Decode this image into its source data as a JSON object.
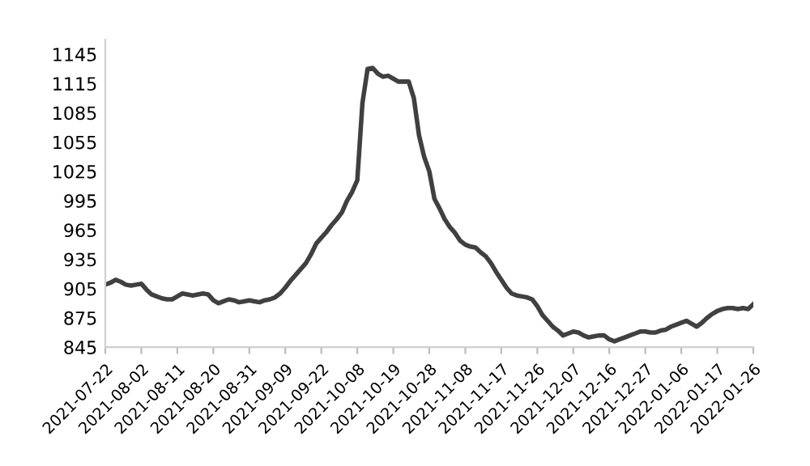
{
  "chart_data": {
    "type": "line",
    "categories": [
      "2021-07-22",
      null,
      null,
      null,
      null,
      null,
      null,
      "2021-08-02",
      null,
      null,
      null,
      null,
      null,
      null,
      "2021-08-11",
      null,
      null,
      null,
      null,
      null,
      null,
      "2021-08-20",
      null,
      null,
      null,
      null,
      null,
      null,
      "2021-08-31",
      null,
      null,
      null,
      null,
      null,
      null,
      "2021-09-09",
      null,
      null,
      null,
      null,
      null,
      null,
      "2021-09-22",
      null,
      null,
      null,
      null,
      null,
      null,
      "2021-10-08",
      null,
      null,
      null,
      null,
      null,
      null,
      "2021-10-19",
      null,
      null,
      null,
      null,
      null,
      null,
      "2021-10-28",
      null,
      null,
      null,
      null,
      null,
      null,
      "2021-11-08",
      null,
      null,
      null,
      null,
      null,
      null,
      "2021-11-17",
      null,
      null,
      null,
      null,
      null,
      null,
      "2021-11-26",
      null,
      null,
      null,
      null,
      null,
      null,
      "2021-12-07",
      null,
      null,
      null,
      null,
      null,
      null,
      "2021-12-16",
      null,
      null,
      null,
      null,
      null,
      null,
      "2021-12-27",
      null,
      null,
      null,
      null,
      null,
      null,
      "2022-01-06",
      null,
      null,
      null,
      null,
      null,
      null,
      "2022-01-17",
      null,
      null,
      null,
      null,
      null,
      null,
      "2022-01-26"
    ],
    "series": [
      {
        "color": "#404040",
        "values": [
          909,
          911,
          914,
          912,
          909,
          908,
          909,
          910,
          904,
          899,
          897,
          895,
          894,
          894,
          897,
          900,
          899,
          898,
          899,
          900,
          899,
          893,
          890,
          892,
          894,
          893,
          891,
          892,
          893,
          892,
          891,
          893,
          894,
          896,
          900,
          906,
          913,
          919,
          925,
          931,
          940,
          951,
          957,
          963,
          970,
          976,
          983,
          995,
          1004,
          1016,
          1095,
          1130,
          1131,
          1125,
          1122,
          1123,
          1120,
          1117,
          1117,
          1117,
          1100,
          1062,
          1040,
          1025,
          997,
          987,
          976,
          968,
          962,
          954,
          950,
          948,
          947,
          942,
          938,
          931,
          922,
          914,
          906,
          900,
          898,
          897,
          896,
          894,
          887,
          878,
          872,
          866,
          862,
          857,
          859,
          861,
          860,
          857,
          855,
          856,
          857,
          857,
          853,
          851,
          853,
          855,
          857,
          859,
          861,
          861,
          860,
          860,
          862,
          863,
          866,
          868,
          870,
          872,
          869,
          866,
          870,
          875,
          879,
          882,
          884,
          885,
          885,
          884,
          885,
          884,
          889
        ]
      }
    ],
    "ylim": [
      845,
      1160
    ],
    "yticks": [
      845,
      875,
      905,
      935,
      965,
      995,
      1025,
      1055,
      1085,
      1115,
      1145
    ],
    "grid": false,
    "marker": "none",
    "line_style": "solid"
  }
}
